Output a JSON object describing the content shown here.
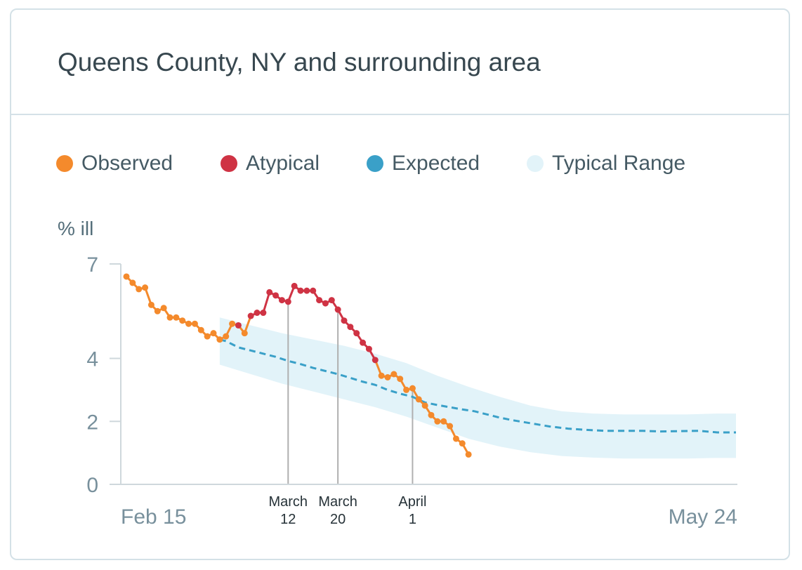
{
  "card": {
    "title": "Queens County, NY and surrounding area"
  },
  "legend": [
    {
      "label": "Observed",
      "color": "#f48a2c"
    },
    {
      "label": "Atypical",
      "color": "#cf3344"
    },
    {
      "label": "Expected",
      "color": "#3aa0c8"
    },
    {
      "label": "Typical Range",
      "color": "#e2f3f9"
    }
  ],
  "chart_data": {
    "type": "line",
    "title": "Queens County, NY and surrounding area",
    "ylabel": "% ill",
    "ylim": [
      0,
      7
    ],
    "yticks": [
      {
        "label": "0",
        "value": 0
      },
      {
        "label": "2",
        "value": 2
      },
      {
        "label": "4",
        "value": 4
      },
      {
        "label": "7",
        "value": 7
      }
    ],
    "x_start_label": "Feb 15",
    "x_end_label": "May 24",
    "x_range_days": [
      0,
      98
    ],
    "annotations": [
      {
        "day": 26,
        "line1": "March",
        "line2": "12"
      },
      {
        "day": 34,
        "line1": "March",
        "line2": "20"
      },
      {
        "day": 46,
        "line1": "April",
        "line2": "1"
      }
    ],
    "observed": {
      "name": "Observed",
      "days": [
        0,
        1,
        2,
        3,
        4,
        5,
        6,
        7,
        8,
        9,
        10,
        11,
        12,
        13,
        14,
        15,
        16,
        17,
        18,
        19,
        20,
        21,
        22,
        23,
        24,
        25,
        26,
        27,
        28,
        29,
        30,
        31,
        32,
        33,
        34,
        35,
        36,
        37,
        38,
        39,
        40,
        41,
        42,
        43,
        44,
        45,
        46,
        47,
        48,
        49,
        50,
        51,
        52,
        53,
        54,
        55
      ],
      "values": [
        6.6,
        6.4,
        6.2,
        6.25,
        5.7,
        5.5,
        5.6,
        5.3,
        5.3,
        5.2,
        5.1,
        5.1,
        4.9,
        4.7,
        4.8,
        4.6,
        4.7,
        5.1,
        5.05,
        4.8,
        5.35,
        5.45,
        5.45,
        6.1,
        6.0,
        5.85,
        5.8,
        6.3,
        6.15,
        6.15,
        6.15,
        5.85,
        5.75,
        5.85,
        5.55,
        5.2,
        5.0,
        4.8,
        4.5,
        4.3,
        3.95,
        3.45,
        3.4,
        3.5,
        3.35,
        3.0,
        3.05,
        2.7,
        2.5,
        2.2,
        2.0,
        2.0,
        1.85,
        1.45,
        1.3,
        0.95
      ],
      "atypical": [
        false,
        false,
        false,
        false,
        false,
        false,
        false,
        false,
        false,
        false,
        false,
        false,
        false,
        false,
        false,
        false,
        false,
        false,
        true,
        false,
        true,
        true,
        true,
        true,
        true,
        true,
        true,
        true,
        true,
        true,
        true,
        true,
        true,
        true,
        true,
        true,
        true,
        true,
        true,
        true,
        true,
        false,
        false,
        false,
        false,
        false,
        false,
        false,
        false,
        false,
        false,
        false,
        false,
        false,
        false,
        false
      ]
    },
    "expected": {
      "name": "Expected",
      "days": [
        15,
        16,
        17,
        18,
        19,
        20,
        22,
        24,
        26,
        28,
        30,
        32,
        34,
        36,
        38,
        40,
        42,
        44,
        46,
        48,
        50,
        52,
        54,
        56,
        58,
        60,
        62,
        65,
        68,
        71,
        74,
        77,
        80,
        83,
        86,
        89,
        92,
        95,
        98
      ],
      "values": [
        4.6,
        4.55,
        4.45,
        4.35,
        4.3,
        4.25,
        4.15,
        4.05,
        3.92,
        3.82,
        3.7,
        3.6,
        3.5,
        3.38,
        3.26,
        3.16,
        3.0,
        2.88,
        2.78,
        2.6,
        2.52,
        2.45,
        2.38,
        2.32,
        2.22,
        2.12,
        2.04,
        1.94,
        1.84,
        1.77,
        1.73,
        1.7,
        1.7,
        1.7,
        1.68,
        1.69,
        1.7,
        1.65,
        1.65
      ]
    },
    "typical_range": {
      "name": "Typical Range",
      "days": [
        15,
        20,
        25,
        30,
        35,
        40,
        45,
        50,
        55,
        60,
        65,
        70,
        75,
        80,
        85,
        90,
        95,
        98
      ],
      "upper": [
        5.3,
        5.05,
        4.8,
        4.6,
        4.4,
        4.15,
        3.85,
        3.45,
        3.1,
        2.78,
        2.5,
        2.32,
        2.25,
        2.22,
        2.22,
        2.22,
        2.25,
        2.25
      ],
      "lower": [
        3.8,
        3.5,
        3.2,
        2.95,
        2.7,
        2.45,
        2.15,
        1.8,
        1.45,
        1.2,
        1.02,
        0.9,
        0.85,
        0.82,
        0.82,
        0.82,
        0.84,
        0.84
      ]
    }
  }
}
